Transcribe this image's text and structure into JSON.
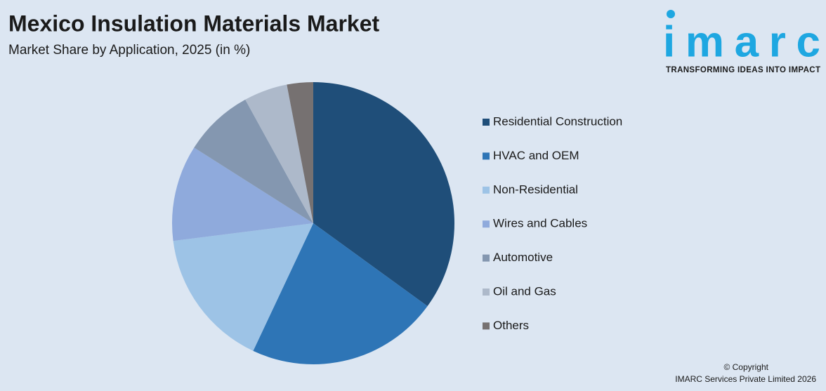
{
  "brand": {
    "name": "imarc",
    "tagline": "TRANSFORMING IDEAS INTO IMPACT"
  },
  "chart_data": {
    "type": "pie",
    "title": "Mexico Insulation Materials Market",
    "subtitle": "Market Share by Application, 2025 (in %)",
    "categories": [
      "Residential Construction",
      "HVAC and OEM",
      "Non-Residential",
      "Wires and Cables",
      "Automotive",
      "Oil and Gas",
      "Others"
    ],
    "values": [
      35,
      22,
      16,
      11,
      8,
      5,
      3
    ],
    "colors": [
      "#1f4e79",
      "#2e75b6",
      "#9dc3e6",
      "#8faadc",
      "#8497b0",
      "#adb9ca",
      "#767171"
    ],
    "legend": "right"
  },
  "footer": {
    "copyright": "© Copyright",
    "company": "IMARC Services Private Limited 2026"
  }
}
